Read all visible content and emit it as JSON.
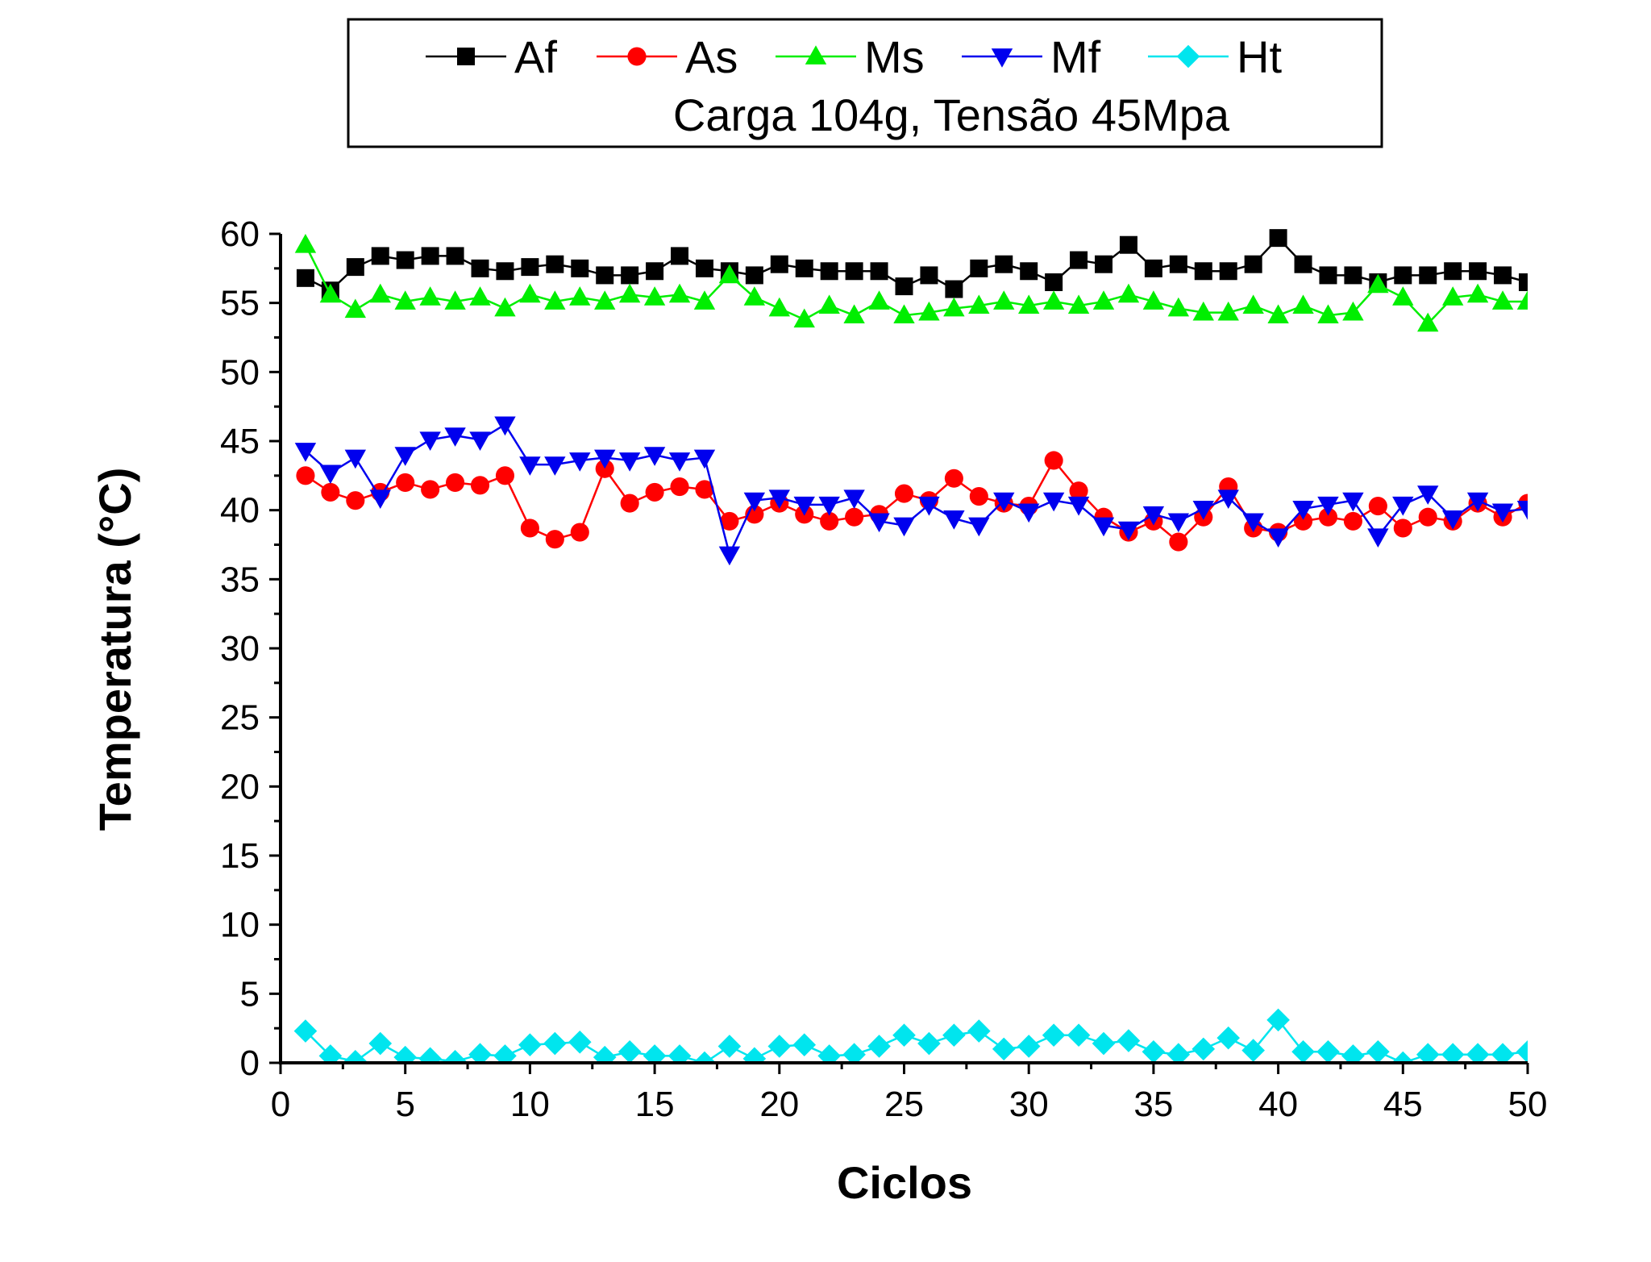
{
  "chart_data": {
    "type": "scatter",
    "title": "",
    "subtitle": "Carga 104g, Tensão 45Mpa",
    "xlabel": "Ciclos",
    "ylabel": "Temperatura (°C)",
    "xlim": [
      0,
      50
    ],
    "ylim": [
      0,
      60
    ],
    "xticks": [
      0,
      5,
      10,
      15,
      20,
      25,
      30,
      35,
      40,
      45,
      50
    ],
    "yticks": [
      0,
      5,
      10,
      15,
      20,
      25,
      30,
      35,
      40,
      45,
      50,
      55,
      60
    ],
    "grid": false,
    "legend_position": "top-center",
    "x": [
      1,
      2,
      3,
      4,
      5,
      6,
      7,
      8,
      9,
      10,
      11,
      12,
      13,
      14,
      15,
      16,
      17,
      18,
      19,
      20,
      21,
      22,
      23,
      24,
      25,
      26,
      27,
      28,
      29,
      30,
      31,
      32,
      33,
      34,
      35,
      36,
      37,
      38,
      39,
      40,
      41,
      42,
      43,
      44,
      45,
      46,
      47,
      48,
      49,
      50
    ],
    "series": [
      {
        "name": "Af",
        "color": "#000000",
        "marker": "square",
        "values": [
          56.8,
          55.9,
          57.6,
          58.4,
          58.1,
          58.4,
          58.4,
          57.5,
          57.3,
          57.6,
          57.8,
          57.5,
          57.0,
          57.0,
          57.3,
          58.4,
          57.5,
          57.3,
          57.0,
          57.8,
          57.5,
          57.3,
          57.3,
          57.3,
          56.2,
          57.0,
          56.0,
          57.5,
          57.8,
          57.3,
          56.5,
          58.1,
          57.8,
          59.2,
          57.5,
          57.8,
          57.3,
          57.3,
          57.8,
          59.7,
          57.8,
          57.0,
          57.0,
          56.5,
          57.0,
          57.0,
          57.3,
          57.3,
          57.0,
          56.5
        ]
      },
      {
        "name": "As",
        "color": "#ff0000",
        "marker": "circle",
        "values": [
          42.5,
          41.3,
          40.7,
          41.3,
          42.0,
          41.5,
          42.0,
          41.8,
          42.5,
          38.7,
          37.9,
          38.4,
          43.0,
          40.5,
          41.3,
          41.7,
          41.5,
          39.2,
          39.7,
          40.5,
          39.7,
          39.2,
          39.5,
          39.7,
          41.2,
          40.7,
          42.3,
          41.0,
          40.5,
          40.3,
          43.6,
          41.4,
          39.5,
          38.4,
          39.2,
          37.7,
          39.5,
          41.7,
          38.7,
          38.4,
          39.2,
          39.5,
          39.2,
          40.3,
          38.7,
          39.5,
          39.2,
          40.5,
          39.5,
          40.5
        ]
      },
      {
        "name": "Ms",
        "color": "#00ee00",
        "marker": "triangle-up",
        "values": [
          59.2,
          55.6,
          54.5,
          55.6,
          55.1,
          55.4,
          55.1,
          55.4,
          54.6,
          55.6,
          55.1,
          55.4,
          55.1,
          55.6,
          55.4,
          55.6,
          55.1,
          57.0,
          55.4,
          54.6,
          53.8,
          54.8,
          54.1,
          55.1,
          54.1,
          54.3,
          54.6,
          54.8,
          55.1,
          54.8,
          55.1,
          54.8,
          55.1,
          55.6,
          55.1,
          54.6,
          54.3,
          54.3,
          54.8,
          54.1,
          54.8,
          54.1,
          54.3,
          56.3,
          55.4,
          53.5,
          55.4,
          55.6,
          55.1,
          55.1
        ]
      },
      {
        "name": "Mf",
        "color": "#0000ee",
        "marker": "triangle-down",
        "values": [
          44.3,
          42.7,
          43.8,
          40.9,
          44.0,
          45.1,
          45.4,
          45.1,
          46.2,
          43.3,
          43.3,
          43.6,
          43.8,
          43.6,
          44.0,
          43.6,
          43.8,
          36.8,
          40.7,
          40.9,
          40.4,
          40.4,
          40.9,
          39.2,
          38.9,
          40.4,
          39.4,
          38.9,
          40.7,
          39.9,
          40.7,
          40.4,
          38.9,
          38.6,
          39.7,
          39.2,
          40.1,
          40.9,
          39.2,
          38.1,
          40.1,
          40.4,
          40.7,
          38.1,
          40.4,
          41.2,
          39.4,
          40.7,
          39.9,
          40.1
        ]
      },
      {
        "name": "Ht",
        "color": "#00e5ee",
        "marker": "diamond",
        "values": [
          2.3,
          0.5,
          0.1,
          1.4,
          0.4,
          0.3,
          0.1,
          0.6,
          0.5,
          1.3,
          1.4,
          1.5,
          0.4,
          0.8,
          0.5,
          0.5,
          0.0,
          1.2,
          0.3,
          1.2,
          1.3,
          0.5,
          0.6,
          1.2,
          2.0,
          1.4,
          2.0,
          2.3,
          1.0,
          1.2,
          2.0,
          2.0,
          1.4,
          1.6,
          0.8,
          0.6,
          1.0,
          1.8,
          0.9,
          3.1,
          0.8,
          0.8,
          0.5,
          0.8,
          0.0,
          0.6,
          0.6,
          0.6,
          0.6,
          0.8
        ]
      }
    ]
  }
}
